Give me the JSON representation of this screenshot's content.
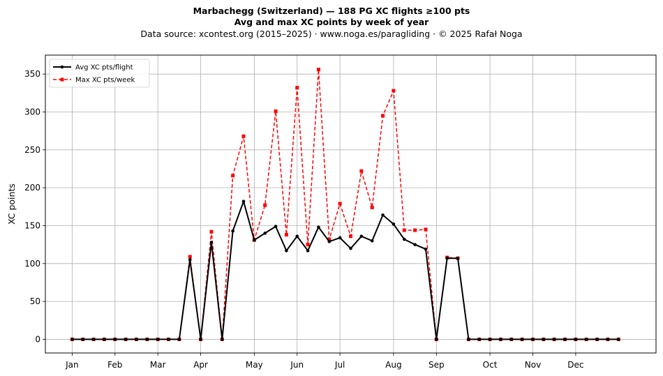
{
  "title": {
    "line1": "Marbachegg (Switzerland)  —  188 PG XC flights ≥100 pts",
    "line2": "Avg and max XC points by week of year",
    "line3": "Data source: xcontest.org (2015–2025)  ·  www.noga.es/paragliding  ·  © 2025 Rafał Noga"
  },
  "chart_data": {
    "type": "line",
    "ylabel": "XC points",
    "xlabel": "",
    "xlim": [
      -2.5,
      54.5
    ],
    "ylim": [
      -18,
      375
    ],
    "yticks": [
      0,
      50,
      100,
      150,
      200,
      250,
      300,
      350
    ],
    "xticks": [
      {
        "label": "Jan",
        "x": 0
      },
      {
        "label": "Feb",
        "x": 4
      },
      {
        "label": "Mar",
        "x": 8
      },
      {
        "label": "Apr",
        "x": 12
      },
      {
        "label": "May",
        "x": 17
      },
      {
        "label": "Jun",
        "x": 21
      },
      {
        "label": "Jul",
        "x": 25
      },
      {
        "label": "Aug",
        "x": 30
      },
      {
        "label": "Sep",
        "x": 34
      },
      {
        "label": "Oct",
        "x": 39
      },
      {
        "label": "Nov",
        "x": 43
      },
      {
        "label": "Dec",
        "x": 47
      }
    ],
    "grid": true,
    "legend_position": "upper-left",
    "x": [
      0,
      1,
      2,
      3,
      4,
      5,
      6,
      7,
      8,
      9,
      10,
      11,
      12,
      13,
      14,
      15,
      16,
      17,
      18,
      19,
      20,
      21,
      22,
      23,
      24,
      25,
      26,
      27,
      28,
      29,
      30,
      31,
      32,
      33,
      34,
      35,
      36,
      37,
      38,
      39,
      40,
      41,
      42,
      43,
      44,
      45,
      46,
      47,
      48,
      49,
      50,
      51
    ],
    "series": [
      {
        "name": "Avg XC pts/flight",
        "color": "#000000",
        "style": "solid",
        "marker": "circle",
        "values": [
          0,
          0,
          0,
          0,
          0,
          0,
          0,
          0,
          0,
          0,
          0,
          105,
          0,
          128,
          0,
          143,
          182,
          131,
          140,
          149,
          117,
          136,
          117,
          148,
          129,
          134,
          120,
          136,
          130,
          164,
          152,
          132,
          125,
          119,
          0,
          107,
          107,
          0,
          0,
          0,
          0,
          0,
          0,
          0,
          0,
          0,
          0,
          0,
          0,
          0,
          0,
          0
        ]
      },
      {
        "name": "Max XC pts/week",
        "color": "#ff0000",
        "style": "dashed",
        "marker": "square",
        "values": [
          0,
          0,
          0,
          0,
          0,
          0,
          0,
          0,
          0,
          0,
          0,
          109,
          0,
          142,
          0,
          216,
          268,
          131,
          177,
          301,
          138,
          332,
          125,
          356,
          132,
          179,
          136,
          222,
          174,
          295,
          328,
          144,
          144,
          145,
          0,
          108,
          107,
          0,
          0,
          0,
          0,
          0,
          0,
          0,
          0,
          0,
          0,
          0,
          0,
          0,
          0,
          0
        ]
      }
    ]
  }
}
